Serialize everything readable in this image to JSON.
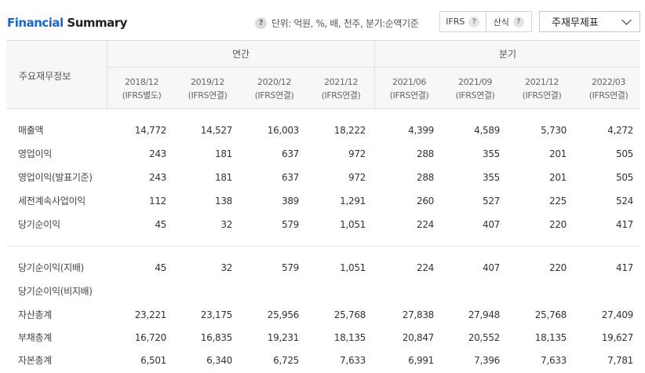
{
  "header": {
    "title_part1": "Financial",
    "title_part2": "Summary",
    "unit_text": "단위: 억원, %, 배, 천주, 분기:순액기준",
    "toggle_ifrs": "IFRS",
    "toggle_calc": "산식",
    "select_value": "주재무제표"
  },
  "table": {
    "label_header": "주요재무정보",
    "group_annual": "연간",
    "group_quarter": "분기",
    "periods": [
      {
        "date": "2018/12",
        "basis": "(IFRS별도)"
      },
      {
        "date": "2019/12",
        "basis": "(IFRS연결)"
      },
      {
        "date": "2020/12",
        "basis": "(IFRS연결)"
      },
      {
        "date": "2021/12",
        "basis": "(IFRS연결)"
      },
      {
        "date": "2021/06",
        "basis": "(IFRS연결)"
      },
      {
        "date": "2021/09",
        "basis": "(IFRS연결)"
      },
      {
        "date": "2021/12",
        "basis": "(IFRS연결)"
      },
      {
        "date": "2022/03",
        "basis": "(IFRS연결)"
      }
    ],
    "rows": [
      {
        "label": "매출액",
        "values": [
          "14,772",
          "14,527",
          "16,003",
          "18,222",
          "4,399",
          "4,589",
          "5,730",
          "4,272"
        ]
      },
      {
        "label": "영업이익",
        "values": [
          "243",
          "181",
          "637",
          "972",
          "288",
          "355",
          "201",
          "505"
        ]
      },
      {
        "label": "영업이익(발표기준)",
        "values": [
          "243",
          "181",
          "637",
          "972",
          "288",
          "355",
          "201",
          "505"
        ]
      },
      {
        "label": "세전계속사업이익",
        "values": [
          "112",
          "138",
          "389",
          "1,291",
          "260",
          "527",
          "225",
          "524"
        ]
      },
      {
        "label": "당기순이익",
        "values": [
          "45",
          "32",
          "579",
          "1,051",
          "224",
          "407",
          "220",
          "417"
        ]
      },
      {
        "label": "당기순이익(지배)",
        "values": [
          "45",
          "32",
          "579",
          "1,051",
          "224",
          "407",
          "220",
          "417"
        ]
      },
      {
        "label": "당기순이익(비지배)",
        "values": [
          "",
          "",
          "",
          "",
          "",
          "",
          "",
          ""
        ]
      },
      {
        "label": "자산총계",
        "values": [
          "23,221",
          "23,175",
          "25,956",
          "25,768",
          "27,838",
          "27,948",
          "25,768",
          "27,409"
        ]
      },
      {
        "label": "부채총계",
        "values": [
          "16,720",
          "16,835",
          "19,231",
          "18,135",
          "20,847",
          "20,552",
          "18,135",
          "19,627"
        ]
      },
      {
        "label": "자본총계",
        "values": [
          "6,501",
          "6,340",
          "6,725",
          "7,633",
          "6,991",
          "7,396",
          "7,633",
          "7,781"
        ]
      }
    ]
  },
  "colors": {
    "accent": "#1a66c9"
  },
  "icons": {
    "help": "question-circle-icon",
    "dropdown": "chevron-down-icon"
  }
}
